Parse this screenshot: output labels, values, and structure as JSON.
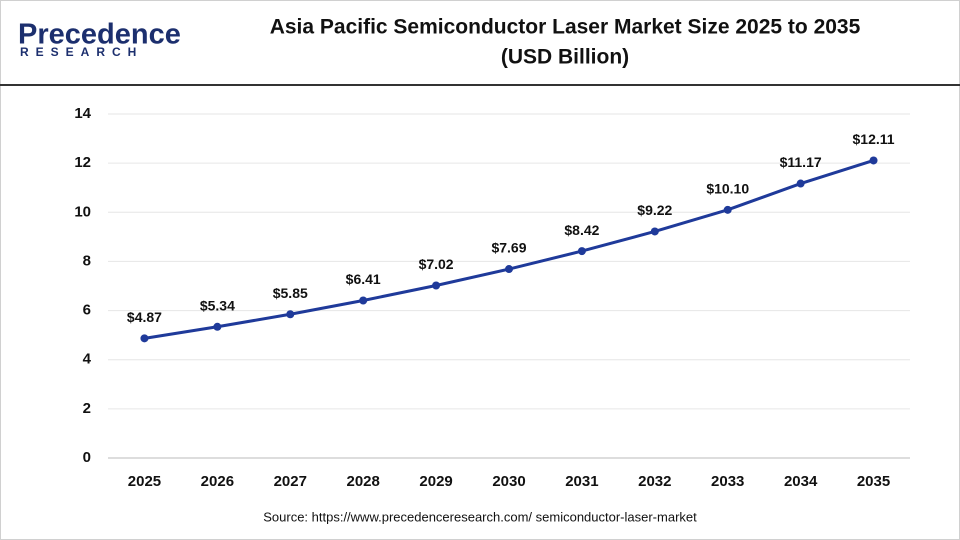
{
  "logo": {
    "name": "Precedence",
    "tagline": "RESEARCH"
  },
  "chart_data": {
    "type": "line",
    "title": "Asia Pacific Semiconductor Laser Market Size 2025 to 2035",
    "subtitle": "(USD Billion)",
    "categories": [
      "2025",
      "2026",
      "2027",
      "2028",
      "2029",
      "2030",
      "2031",
      "2032",
      "2033",
      "2034",
      "2035"
    ],
    "series": [
      {
        "name": "Market Size",
        "color": "#1f3a9a",
        "values": [
          4.87,
          5.34,
          5.85,
          6.41,
          7.02,
          7.69,
          8.42,
          9.22,
          10.1,
          11.17,
          12.11
        ],
        "value_labels": [
          "$4.87",
          "$5.34",
          "$5.85",
          "$6.41",
          "$7.02",
          "$7.69",
          "$8.42",
          "$9.22",
          "$10.10",
          "$11.17",
          "$12.11"
        ]
      }
    ],
    "ylim": [
      0,
      14
    ],
    "yticks": [
      0,
      2,
      4,
      6,
      8,
      10,
      12,
      14
    ],
    "grid": true,
    "source": "Source: https://www.precedenceresearch.com/ semiconductor-laser-market"
  }
}
